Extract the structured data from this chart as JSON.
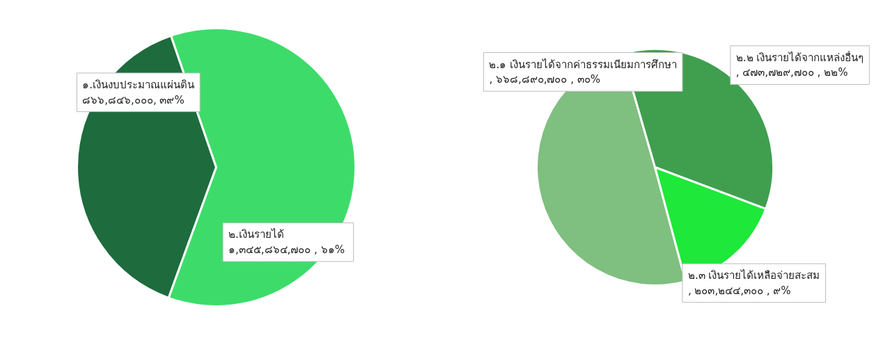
{
  "chart_data": [
    {
      "type": "pie",
      "categories": [
        "๑.เงินงบประมาณแผ่นดิน",
        "๒.เงินรายได้"
      ],
      "values": [
        866846000,
        1345864700
      ],
      "colors": [
        "#1e6b3e",
        "#3ddc6a"
      ],
      "value_labels": [
        "๘๖๖,๘๔๖,๐๐๐,  ๓๙%",
        "๑,๓๔๕,๘๖๔,๗๐๐ ,  ๖๑%"
      ]
    },
    {
      "type": "pie",
      "categories": [
        "๒.๑ เงินรายได้จากค่าธรรมเนียมการศึกษา",
        "๒.๒ เงินรายได้จากแหล่งอื่นๆ",
        "๒.๓ เงินรายได้เหลือจ่ายสะสม"
      ],
      "values": [
        668890700,
        473729700,
        203244300
      ],
      "colors": [
        "#7fbf7f",
        "#3f9f4f",
        "#1ee83a"
      ],
      "value_labels": [
        ",  ๖๖๘,๘๙๐,๗๐๐ , ๓๐%",
        ", ๔๗๓,๗๒๙,๗๐๐ , ๒๒%",
        ", ๒๐๓,๒๔๔,๓๐๐ , ๙%"
      ]
    }
  ]
}
